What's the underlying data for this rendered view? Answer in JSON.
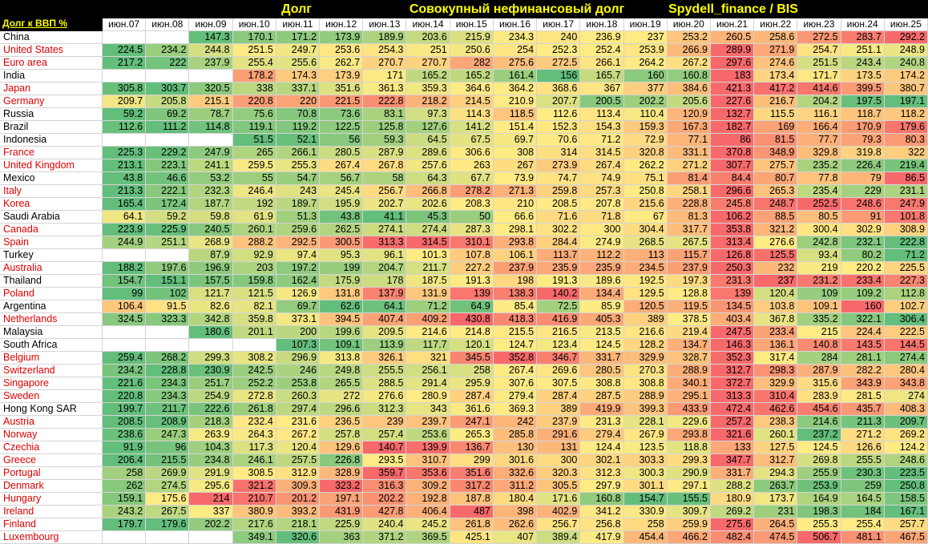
{
  "header": {
    "titles": [
      "Долг",
      "Совокупный нефинансовый долг",
      "Spydell_finance / BIS"
    ],
    "corner": "Долг к ВВП %"
  },
  "table": {
    "columns": [
      "июн.07",
      "июн.08",
      "июн.09",
      "июн.10",
      "июн.11",
      "июн.12",
      "июн.13",
      "июн.14",
      "июн.15",
      "июн.16",
      "июн.17",
      "июн.18",
      "июн.19",
      "июн.20",
      "июн.21",
      "июн.22",
      "июн.23",
      "июн.24",
      "июн.25"
    ],
    "scale_colors": [
      "#63be7b",
      "#ffeb84",
      "#f8696b"
    ],
    "rows": [
      {
        "name": "China",
        "color": "#000000",
        "values": [
          null,
          null,
          147.3,
          170.1,
          171.2,
          173.9,
          189.9,
          203.6,
          215.9,
          234.3,
          240,
          236.9,
          237,
          253.2,
          260.5,
          258.6,
          272.5,
          283.7,
          292.2
        ]
      },
      {
        "name": "United States",
        "color": "#e00000",
        "values": [
          224.5,
          234.2,
          244.8,
          251.5,
          249.7,
          253.6,
          254.3,
          251,
          250.6,
          254,
          252.3,
          252.4,
          253.9,
          266.9,
          289.9,
          271.9,
          254.7,
          251.1,
          248.9
        ]
      },
      {
        "name": "Euro area",
        "color": "#e00000",
        "values": [
          217.2,
          222,
          237.9,
          255.4,
          255.6,
          262.7,
          270.7,
          270.7,
          282,
          275.6,
          272.5,
          266.1,
          264.2,
          267.2,
          297.6,
          274.6,
          251.5,
          243.4,
          240.8
        ]
      },
      {
        "name": "India",
        "color": "#000000",
        "values": [
          null,
          null,
          null,
          178.2,
          174.3,
          173.9,
          171,
          165.2,
          165.2,
          161.4,
          156,
          165.7,
          160,
          160.8,
          183,
          173.4,
          171.7,
          173.5,
          174.2
        ]
      },
      {
        "name": "Japan",
        "color": "#e00000",
        "values": [
          305.8,
          303.7,
          320.5,
          338,
          337.1,
          351.6,
          361.3,
          359.3,
          364.6,
          364.2,
          368.6,
          367,
          377,
          384.6,
          421.3,
          417.2,
          414.6,
          399.5,
          380.7
        ]
      },
      {
        "name": "Germany",
        "color": "#e00000",
        "values": [
          209.7,
          205.8,
          215.1,
          220.8,
          220,
          221.5,
          222.8,
          218.2,
          214.5,
          210.9,
          207.7,
          200.5,
          202.2,
          205.6,
          227.6,
          216.7,
          204.2,
          197.5,
          197.1
        ]
      },
      {
        "name": "Russia",
        "color": "#000000",
        "values": [
          59.2,
          69.2,
          78.7,
          75.6,
          70.8,
          73.6,
          83.1,
          97.3,
          114.3,
          118.5,
          112.6,
          113.4,
          110.4,
          120.9,
          132.7,
          115.5,
          116.1,
          118.7,
          118.2
        ]
      },
      {
        "name": "Brazil",
        "color": "#000000",
        "values": [
          112.6,
          111.2,
          114.8,
          119.1,
          119.2,
          122.5,
          125.8,
          127.6,
          141.2,
          151.4,
          152.3,
          154.3,
          159.3,
          167.3,
          182.7,
          169,
          166.4,
          170.9,
          179.6
        ]
      },
      {
        "name": "Indonesia",
        "color": "#000000",
        "values": [
          null,
          null,
          null,
          51.5,
          52.1,
          56,
          59.3,
          64.5,
          67.5,
          69.7,
          70.6,
          71.2,
          72.9,
          77.1,
          86,
          81.5,
          77.7,
          79.3,
          80.3
        ]
      },
      {
        "name": "France",
        "color": "#e00000",
        "values": [
          225.3,
          229.2,
          247.9,
          265,
          266.1,
          280.5,
          287.9,
          289.6,
          306.6,
          308,
          314,
          314.5,
          320.8,
          331.1,
          370.8,
          348.9,
          329.8,
          319.8,
          322
        ]
      },
      {
        "name": "United Kingdom",
        "color": "#e00000",
        "values": [
          213.1,
          223.1,
          241.1,
          259.5,
          255.3,
          267.4,
          267.8,
          257.6,
          263,
          267,
          273.9,
          267.4,
          262.2,
          271.2,
          307.7,
          275.7,
          235.2,
          226.4,
          219.4
        ]
      },
      {
        "name": "Mexico",
        "color": "#000000",
        "values": [
          43.8,
          46.6,
          53.2,
          55,
          54.7,
          56.7,
          58,
          64.3,
          67.7,
          73.9,
          74.7,
          74.9,
          75.1,
          81.4,
          84.4,
          80.7,
          77.8,
          79,
          86.5
        ]
      },
      {
        "name": "Italy",
        "color": "#e00000",
        "values": [
          213.3,
          222.1,
          232.3,
          246.4,
          243,
          245.4,
          256.7,
          266.8,
          278.2,
          271.3,
          259.8,
          257.3,
          250.8,
          258.1,
          296.6,
          265.3,
          235.4,
          229,
          231.1
        ]
      },
      {
        "name": "Korea",
        "color": "#e00000",
        "values": [
          165.4,
          172.4,
          187.7,
          192,
          189.7,
          195.9,
          202.7,
          202.6,
          208.3,
          210,
          208.5,
          207.8,
          215.6,
          228.8,
          245.8,
          248.7,
          252.5,
          248.6,
          247.9
        ]
      },
      {
        "name": "Saudi Arabia",
        "color": "#000000",
        "values": [
          64.1,
          59.2,
          59.8,
          61.9,
          51.3,
          43.8,
          41.1,
          45.3,
          50,
          66.6,
          71.6,
          71.8,
          67,
          81.3,
          106.2,
          88.5,
          80.5,
          91,
          101.8
        ]
      },
      {
        "name": "Canada",
        "color": "#e00000",
        "values": [
          223.9,
          225.9,
          240.5,
          260.1,
          259.6,
          262.5,
          274.1,
          274.4,
          287.3,
          298.1,
          302.2,
          300,
          304.4,
          317.7,
          353.8,
          321.2,
          300.4,
          302.9,
          308.9
        ]
      },
      {
        "name": "Spain",
        "color": "#e00000",
        "values": [
          244.9,
          251.1,
          268.9,
          288.2,
          292.5,
          300.5,
          313.3,
          314.5,
          310.1,
          293.8,
          284.4,
          274.9,
          268.5,
          267.5,
          313.4,
          276.6,
          242.8,
          232.1,
          222.8
        ]
      },
      {
        "name": "Turkey",
        "color": "#000000",
        "values": [
          null,
          null,
          87.9,
          92.9,
          97.4,
          95.3,
          96.1,
          101.3,
          107.8,
          106.1,
          113.7,
          112.2,
          113,
          115.7,
          126.8,
          125.5,
          93.4,
          80.2,
          71.2
        ]
      },
      {
        "name": "Australia",
        "color": "#e00000",
        "values": [
          188.2,
          197.6,
          196.9,
          203,
          197.2,
          199,
          204.7,
          211.7,
          227.2,
          237.9,
          235.9,
          235.9,
          234.5,
          237.9,
          250.3,
          232,
          219,
          220.2,
          225.5
        ]
      },
      {
        "name": "Thailand",
        "color": "#000000",
        "values": [
          154.7,
          151.1,
          157.5,
          159.8,
          162.4,
          175.9,
          178,
          187.5,
          191.3,
          198,
          191.3,
          189.6,
          192.5,
          197.3,
          231.3,
          237,
          231.2,
          233.4,
          227.3
        ]
      },
      {
        "name": "Poland",
        "color": "#e00000",
        "values": [
          99,
          102,
          121.7,
          121.5,
          126.9,
          131.8,
          137.9,
          131.9,
          139,
          138.3,
          140.2,
          134.4,
          129.5,
          128.8,
          139,
          120.4,
          109,
          109.2,
          112.8
        ]
      },
      {
        "name": "Argentina",
        "color": "#000000",
        "values": [
          106.4,
          91.5,
          82.6,
          82.1,
          69.7,
          62.6,
          64.1,
          71.2,
          64.9,
          85.4,
          72.5,
          85.9,
          120.5,
          119.5,
          134.5,
          103.8,
          109.1,
          160,
          102.7
        ]
      },
      {
        "name": "Netherlands",
        "color": "#e00000",
        "values": [
          324.5,
          323.3,
          342.8,
          359.8,
          373.1,
          394.5,
          407.4,
          409.2,
          430.8,
          418.3,
          416.9,
          405.3,
          389,
          378.5,
          403.4,
          367.8,
          335.2,
          322.1,
          306.4
        ]
      },
      {
        "name": "Malaysia",
        "color": "#000000",
        "values": [
          null,
          null,
          180.6,
          201.1,
          200,
          199.6,
          209.5,
          214.6,
          214.8,
          215.5,
          216.5,
          213.5,
          216.6,
          219.4,
          247.5,
          233.4,
          215,
          224.4,
          222.5
        ]
      },
      {
        "name": "South Africa",
        "color": "#000000",
        "values": [
          null,
          null,
          null,
          null,
          107.3,
          109.1,
          113.9,
          117.7,
          120.1,
          124.7,
          123.4,
          124.5,
          128.2,
          134.7,
          146.3,
          136.1,
          140.8,
          143.5,
          144.5
        ]
      },
      {
        "name": "Belgium",
        "color": "#e00000",
        "values": [
          259.4,
          268.2,
          299.3,
          308.2,
          296.9,
          313.8,
          326.1,
          321,
          345.5,
          352.8,
          346.7,
          331.7,
          329.9,
          328.7,
          352.3,
          317.4,
          284,
          281.1,
          274.4
        ]
      },
      {
        "name": "Switzerland",
        "color": "#e00000",
        "values": [
          234.2,
          228.8,
          230.9,
          242.5,
          246,
          249.8,
          255.5,
          256.1,
          258,
          267.4,
          269.6,
          280.5,
          270.3,
          288.9,
          312.7,
          298.3,
          287.9,
          282.2,
          280.4
        ]
      },
      {
        "name": "Singapore",
        "color": "#e00000",
        "values": [
          221.6,
          234.3,
          251.7,
          252.2,
          253.8,
          265.5,
          288.5,
          291.4,
          295.9,
          307.6,
          307.5,
          308.8,
          308.8,
          340.1,
          372.7,
          329.9,
          315.6,
          343.9,
          343.8
        ]
      },
      {
        "name": "Sweden",
        "color": "#e00000",
        "values": [
          220.8,
          234.3,
          254.9,
          272.8,
          260.3,
          272,
          276.6,
          280.9,
          287.4,
          279.4,
          287.4,
          287.5,
          288.9,
          295.1,
          313.3,
          310.4,
          283.9,
          281.5,
          274
        ]
      },
      {
        "name": "Hong Kong SAR",
        "color": "#000000",
        "values": [
          199.7,
          211.7,
          222.6,
          261.8,
          297.4,
          296.6,
          312.3,
          343,
          361.6,
          369.3,
          389,
          419.9,
          399.3,
          433.9,
          472.4,
          462.6,
          454.6,
          435.7,
          408.3
        ]
      },
      {
        "name": "Austria",
        "color": "#e00000",
        "values": [
          208.5,
          208.9,
          218.3,
          232.4,
          231.6,
          236.5,
          239,
          239.7,
          247.1,
          242,
          237.9,
          231.3,
          228.1,
          229.6,
          257.2,
          238.3,
          214.6,
          211.3,
          209.7
        ]
      },
      {
        "name": "Norway",
        "color": "#e00000",
        "values": [
          238.6,
          247.3,
          263.9,
          264.3,
          267.2,
          257.8,
          257.4,
          253.6,
          265.3,
          285.8,
          291.6,
          279.4,
          267.9,
          293.8,
          321.6,
          260.1,
          237.2,
          271.2,
          269.2
        ]
      },
      {
        "name": "Czechia",
        "color": "#e00000",
        "values": [
          91.9,
          96,
          104.3,
          117.3,
          120.4,
          129.6,
          140.7,
          139.9,
          136.7,
          130,
          131,
          124.4,
          123.5,
          118.8,
          133,
          127.5,
          124.5,
          126.6,
          124.2
        ]
      },
      {
        "name": "Greece",
        "color": "#e00000",
        "values": [
          206.4,
          215.5,
          234.8,
          246.1,
          257.5,
          226.8,
          293.5,
          310.7,
          299,
          301.6,
          300,
          302.1,
          303.3,
          299.3,
          347.7,
          312.7,
          269.8,
          255.5,
          248.6
        ]
      },
      {
        "name": "Portugal",
        "color": "#e00000",
        "values": [
          258,
          269.9,
          291.9,
          308.5,
          312.9,
          328.9,
          359.7,
          353.6,
          351.6,
          332.6,
          320.3,
          312.3,
          300.3,
          290.9,
          331.7,
          294.3,
          255.9,
          230.3,
          223.5
        ]
      },
      {
        "name": "Denmark",
        "color": "#e00000",
        "values": [
          262,
          274.5,
          295.6,
          321.2,
          309.3,
          323.2,
          316.3,
          309.2,
          317.2,
          311.2,
          305.5,
          297.9,
          301.1,
          297.1,
          288.2,
          263.7,
          253.9,
          259,
          250.8
        ]
      },
      {
        "name": "Hungary",
        "color": "#e00000",
        "values": [
          159.1,
          175.6,
          214,
          210.7,
          201.2,
          197.1,
          202.2,
          192.8,
          187.8,
          180.4,
          171.6,
          160.8,
          154.7,
          155.5,
          180.9,
          173.7,
          164.9,
          164.5,
          158.5
        ]
      },
      {
        "name": "Ireland",
        "color": "#e00000",
        "values": [
          243.2,
          267.5,
          337,
          380.9,
          393.2,
          431.9,
          427.8,
          406.4,
          487,
          398,
          402.9,
          341.2,
          330.9,
          309.7,
          269.2,
          231,
          198.3,
          184,
          167.1
        ]
      },
      {
        "name": "Finland",
        "color": "#e00000",
        "values": [
          179.7,
          179.6,
          202.2,
          217.6,
          218.1,
          225.9,
          240.4,
          245.2,
          261.8,
          262.6,
          256.7,
          256.8,
          258,
          259.9,
          275.6,
          264.5,
          255.3,
          255.4,
          257.7
        ]
      },
      {
        "name": "Luxembourg",
        "color": "#e00000",
        "values": [
          null,
          null,
          null,
          349.1,
          320.6,
          363,
          371.2,
          369.5,
          425.1,
          407,
          389.4,
          417.9,
          454.4,
          466.2,
          482.4,
          474.5,
          506.7,
          481.1,
          467.5
        ]
      }
    ]
  }
}
